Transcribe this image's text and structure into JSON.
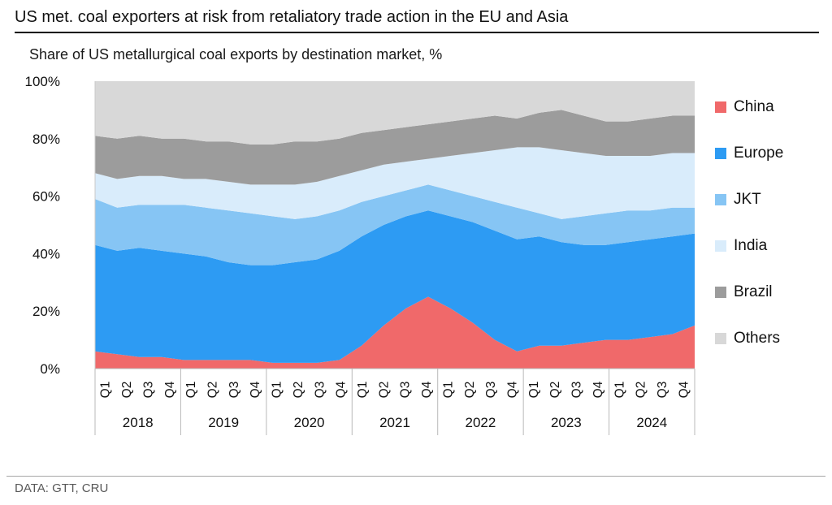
{
  "header": {
    "title": "US met. coal exporters at risk from retaliatory trade action in the EU and Asia"
  },
  "chart": {
    "subtitle": "Share of US metallurgical coal exports by destination market, %"
  },
  "footer": {
    "source": "DATA: GTT, CRU"
  },
  "chart_data": {
    "type": "area",
    "stacked": true,
    "title": "Share of US metallurgical coal exports by destination market, %",
    "unit": "%",
    "ylim": [
      0,
      100
    ],
    "ytick_values": [
      0,
      20,
      40,
      60,
      80,
      100
    ],
    "ytick_labels": [
      "0%",
      "20%",
      "40%",
      "60%",
      "80%",
      "100%"
    ],
    "grid": false,
    "legend_position": "right",
    "years": [
      "2018",
      "2019",
      "2020",
      "2021",
      "2022",
      "2023",
      "2024"
    ],
    "quarters": [
      "Q1",
      "Q2",
      "Q3",
      "Q4"
    ],
    "series": [
      {
        "name": "China",
        "color": "#F0696A",
        "values": [
          6,
          5,
          4,
          4,
          3,
          3,
          3,
          3,
          2,
          2,
          2,
          3,
          8,
          15,
          21,
          25,
          21,
          16,
          10,
          6,
          8,
          8,
          9,
          10,
          10,
          11,
          12,
          15
        ]
      },
      {
        "name": "Europe",
        "color": "#2D9BF3",
        "values": [
          37,
          36,
          38,
          37,
          37,
          36,
          34,
          33,
          34,
          35,
          36,
          38,
          38,
          35,
          32,
          30,
          32,
          35,
          38,
          39,
          38,
          36,
          34,
          33,
          34,
          34,
          34,
          32
        ]
      },
      {
        "name": "JKT",
        "color": "#86C5F4",
        "values": [
          16,
          15,
          15,
          16,
          17,
          17,
          18,
          18,
          17,
          15,
          15,
          14,
          12,
          10,
          9,
          9,
          9,
          9,
          10,
          11,
          8,
          8,
          10,
          11,
          11,
          10,
          10,
          9
        ]
      },
      {
        "name": "India",
        "color": "#D9ECFB",
        "values": [
          9,
          10,
          10,
          10,
          9,
          10,
          10,
          10,
          11,
          12,
          12,
          12,
          11,
          11,
          10,
          9,
          12,
          15,
          18,
          21,
          23,
          24,
          22,
          20,
          19,
          19,
          19,
          19
        ]
      },
      {
        "name": "Brazil",
        "color": "#9C9C9C",
        "values": [
          13,
          14,
          14,
          13,
          14,
          13,
          14,
          14,
          14,
          15,
          14,
          13,
          13,
          12,
          12,
          12,
          12,
          12,
          12,
          10,
          12,
          14,
          13,
          12,
          12,
          13,
          13,
          13
        ]
      },
      {
        "name": "Others",
        "color": "#D8D8D8",
        "values": [
          19,
          20,
          19,
          20,
          20,
          21,
          21,
          22,
          22,
          21,
          21,
          20,
          18,
          17,
          16,
          15,
          14,
          13,
          12,
          13,
          11,
          10,
          12,
          14,
          14,
          13,
          12,
          12
        ]
      }
    ]
  }
}
